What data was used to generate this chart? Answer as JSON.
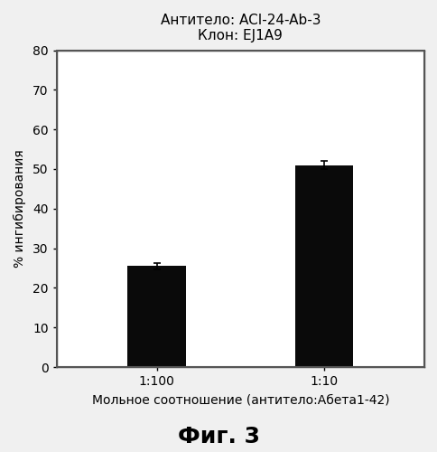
{
  "title_line1": "Антитело: ACI-24-Ab-3",
  "title_line2": "Клон: EJ1A9",
  "categories": [
    "1:100",
    "1:10"
  ],
  "values": [
    25.5,
    51.0
  ],
  "errors": [
    0.8,
    1.0
  ],
  "bar_color": "#0a0a0a",
  "bar_width": 0.35,
  "ylabel": "% ингибирования",
  "xlabel": "Мольное соотношение (антитело:Абета1-42)",
  "figure_label": "Фиг. 3",
  "ylim": [
    0,
    80
  ],
  "yticks": [
    0,
    10,
    20,
    30,
    40,
    50,
    60,
    70,
    80
  ],
  "background_color": "#f0f0f0",
  "plot_bg_color": "#ffffff",
  "title_fontsize": 11,
  "label_fontsize": 10,
  "tick_fontsize": 10,
  "figure_label_fontsize": 18,
  "border_color": "#aaaaaa"
}
